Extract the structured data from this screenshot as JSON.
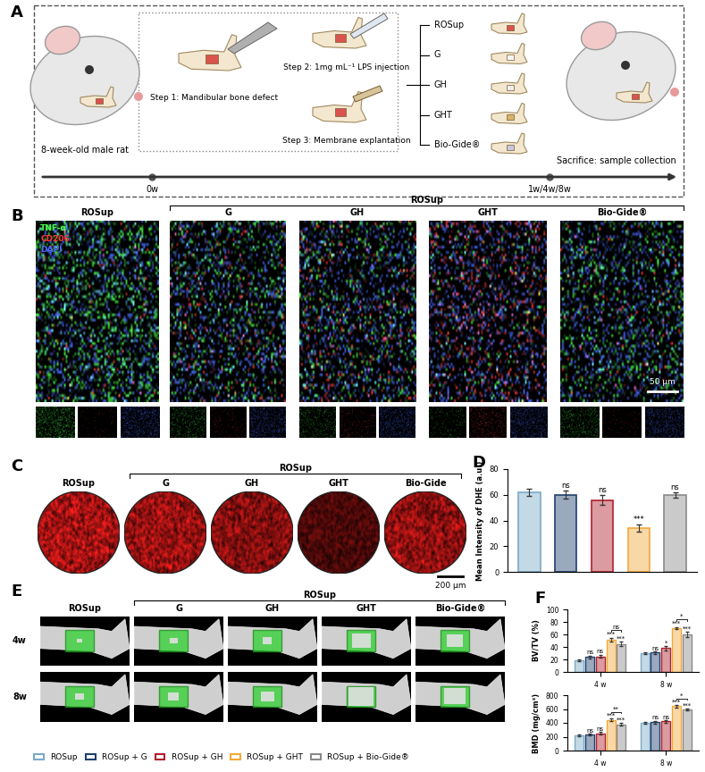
{
  "panel_labels": [
    "A",
    "B",
    "C",
    "D",
    "E",
    "F"
  ],
  "schematic": {
    "subject": "8-week-old male rat",
    "steps": [
      "Step 1: Mandibular bone defect",
      "Step 2: 1mg mL⁻¹ LPS injection",
      "Step 3: Membrane explantation"
    ],
    "groups": [
      "ROSup",
      "G",
      "GH",
      "GHT",
      "Bio-Gide®"
    ],
    "timeline": {
      "start": "0w",
      "end": "1w/4w/8w",
      "end_event": "Sacrifice: sample collection"
    }
  },
  "immunofluorescence": {
    "control": "ROSup",
    "bracket": "ROSup",
    "groups": [
      "G",
      "GH",
      "GHT",
      "Bio-Gide®"
    ],
    "channels": [
      {
        "name": "TNF-α",
        "color": "#4cff4c"
      },
      {
        "name": "CD206",
        "color": "#ff3b3b"
      },
      {
        "name": "DAPI",
        "color": "#4a6bff"
      }
    ],
    "scale_bar": "50 μm"
  },
  "dhe_staining": {
    "control": "ROSup",
    "bracket": "ROSup",
    "groups": [
      "G",
      "GH",
      "GHT",
      "Bio-Gide"
    ],
    "scale_bar": "200 μm"
  },
  "micro_ct": {
    "control": "ROSup",
    "bracket": "ROSup",
    "groups": [
      "G",
      "GH",
      "GHT",
      "Bio-Gide®"
    ],
    "rows": [
      "4w",
      "8w"
    ]
  },
  "chart_data": [
    {
      "type": "bar",
      "ylabel": "Mean Intensity of DHE (a.u.)",
      "categories": [
        "ROSup",
        "ROSup + G",
        "ROSup + GH",
        "ROSup + GHT",
        "ROSup + Bio-Gide®"
      ],
      "values": [
        62,
        60,
        56,
        34,
        60
      ],
      "errors": [
        3,
        3,
        4,
        3,
        2
      ],
      "colors": [
        "#7aaac8",
        "#1f3f6e",
        "#b0202c",
        "#f2a93b",
        "#8a8a8a"
      ],
      "significance": [
        null,
        "ns",
        "ns",
        "***",
        "ns"
      ],
      "ylim": [
        0,
        80
      ],
      "yticks": [
        0,
        20,
        40,
        60,
        80
      ],
      "tick_labels": "y"
    },
    {
      "type": "bar",
      "ylabel": "BV/TV (%)",
      "categories": [
        "4 w",
        "8 w"
      ],
      "series": [
        {
          "name": "ROSup",
          "color": "#7aaac8",
          "values": [
            19,
            30
          ],
          "errors": [
            1.5,
            2
          ],
          "significance": [
            null,
            null
          ]
        },
        {
          "name": "ROSup + G",
          "color": "#1f3f6e",
          "values": [
            24,
            31
          ],
          "errors": [
            2,
            2
          ],
          "significance": [
            "ns",
            "ns"
          ]
        },
        {
          "name": "ROSup + GH",
          "color": "#b0202c",
          "values": [
            25,
            38
          ],
          "errors": [
            2.5,
            3
          ],
          "significance": [
            "ns",
            "*"
          ]
        },
        {
          "name": "ROSup + GHT",
          "color": "#f2a93b",
          "values": [
            52,
            70
          ],
          "errors": [
            3,
            2
          ],
          "significance": [
            "***",
            "***"
          ]
        },
        {
          "name": "ROSup + Bio-Gide®",
          "color": "#8a8a8a",
          "values": [
            45,
            60
          ],
          "errors": [
            3,
            4
          ],
          "significance": [
            "***",
            "***"
          ]
        }
      ],
      "comparisons": [
        {
          "category": "4 w",
          "between": [
            "ROSup + GHT",
            "ROSup + Bio-Gide®"
          ],
          "label": "ns"
        },
        {
          "category": "8 w",
          "between": [
            "ROSup + GHT",
            "ROSup + Bio-Gide®"
          ],
          "label": "*"
        }
      ],
      "ylim": [
        0,
        100
      ],
      "yticks": [
        0,
        20,
        40,
        60,
        80,
        100
      ],
      "legend": "lower left"
    },
    {
      "type": "bar",
      "ylabel": "BMD (mg/cm³)",
      "categories": [
        "4 w",
        "8 w"
      ],
      "series": [
        {
          "name": "ROSup",
          "color": "#7aaac8",
          "values": [
            220,
            400
          ],
          "errors": [
            12,
            15
          ],
          "significance": [
            null,
            null
          ]
        },
        {
          "name": "ROSup + G",
          "color": "#1f3f6e",
          "values": [
            235,
            410
          ],
          "errors": [
            12,
            20
          ],
          "significance": [
            "ns",
            "ns"
          ]
        },
        {
          "name": "ROSup + GH",
          "color": "#b0202c",
          "values": [
            250,
            420
          ],
          "errors": [
            15,
            20
          ],
          "significance": [
            "ns",
            "ns"
          ]
        },
        {
          "name": "ROSup + GHT",
          "color": "#f2a93b",
          "values": [
            440,
            640
          ],
          "errors": [
            20,
            15
          ],
          "significance": [
            "***",
            "***"
          ]
        },
        {
          "name": "ROSup + Bio-Gide®",
          "color": "#8a8a8a",
          "values": [
            380,
            590
          ],
          "errors": [
            15,
            15
          ],
          "significance": [
            "***",
            "***"
          ]
        }
      ],
      "comparisons": [
        {
          "category": "4 w",
          "between": [
            "ROSup + GHT",
            "ROSup + Bio-Gide®"
          ],
          "label": "**"
        },
        {
          "category": "8 w",
          "between": [
            "ROSup + GHT",
            "ROSup + Bio-Gide®"
          ],
          "label": "*"
        }
      ],
      "ylim": [
        0,
        800
      ],
      "yticks": [
        0,
        200,
        400,
        600,
        800
      ]
    }
  ]
}
